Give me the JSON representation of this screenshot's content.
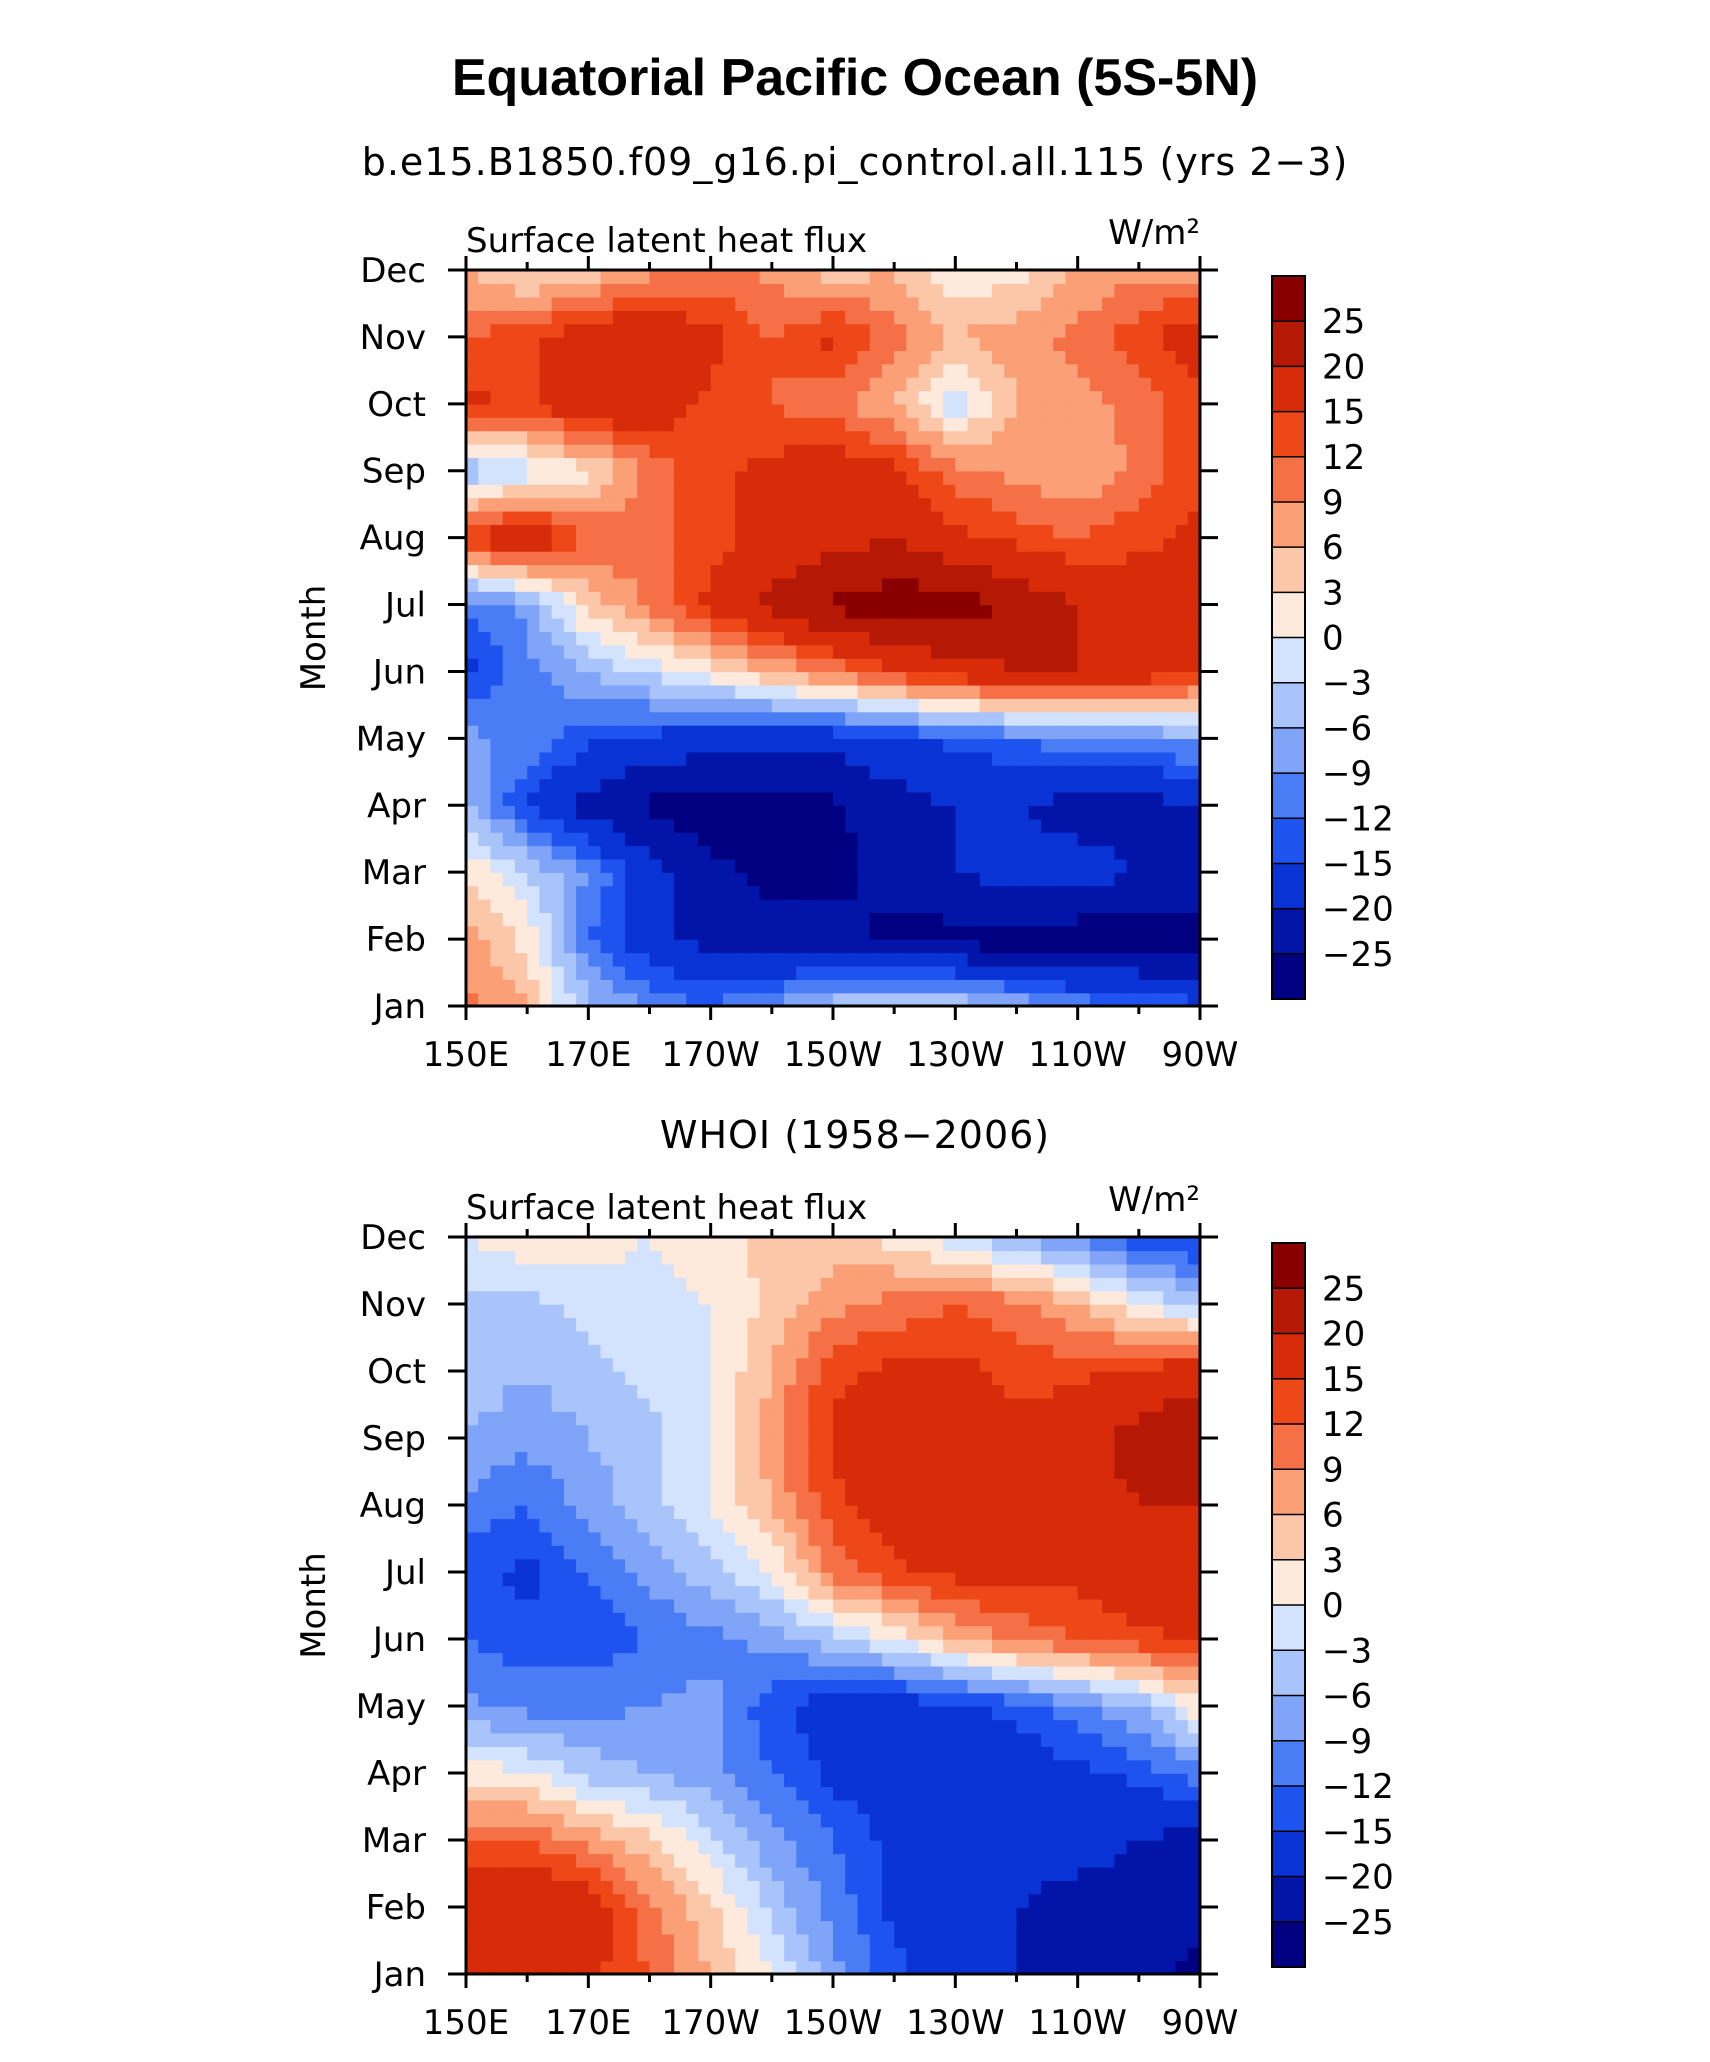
{
  "title": "Equatorial Pacific Ocean (5S-5N)",
  "colors": {
    "palette": [
      "#000080",
      "#0314a8",
      "#0a33d6",
      "#1f53f0",
      "#4a7cf5",
      "#7fa4f8",
      "#a9c3fb",
      "#d3e3fe",
      "#fdeadc",
      "#fcc6a8",
      "#fb9f76",
      "#f57046",
      "#ee4718",
      "#d72b0a",
      "#b51805",
      "#8a0000"
    ]
  },
  "chart_data": [
    {
      "type": "heatmap",
      "subtitle": "b.e15.B1850.f09_g16.pi_control.all.115 (yrs 2−3)",
      "variable_label": "Surface latent heat flux",
      "units_label": "W/m²",
      "ylabel": "Month",
      "x_ticks": [
        "150E",
        "170E",
        "170W",
        "150W",
        "130W",
        "110W",
        "90W"
      ],
      "y_ticks": [
        "Jan",
        "Feb",
        "Mar",
        "Apr",
        "May",
        "Jun",
        "Jul",
        "Aug",
        "Sep",
        "Oct",
        "Nov",
        "Dec"
      ],
      "xlim": [
        150,
        270
      ],
      "colorbar_levels": [
        "25",
        "20",
        "15",
        "12",
        "9",
        "6",
        "3",
        "0",
        "−3",
        "−6",
        "−9",
        "−12",
        "−15",
        "−20",
        "−25"
      ],
      "x_lon": [
        150,
        160,
        170,
        180,
        190,
        200,
        210,
        220,
        230,
        240,
        250,
        260,
        270
      ],
      "values": [
        [
          10,
          6,
          -5,
          -9,
          -12,
          -8,
          -4,
          -2,
          -3,
          -6,
          -10,
          -12,
          -14
        ],
        [
          8,
          2,
          -12,
          -18,
          -22,
          -24,
          -24,
          -26,
          -27,
          -28,
          -28,
          -28,
          -28
        ],
        [
          3,
          -3,
          -9,
          -18,
          -24,
          -26,
          -26,
          -24,
          -20,
          -18,
          -18,
          -20,
          -22
        ],
        [
          -6,
          -15,
          -22,
          -26,
          -28,
          -28,
          -26,
          -22,
          -20,
          -20,
          -22,
          -22,
          -20
        ],
        [
          -8,
          -10,
          -14,
          -16,
          -18,
          -18,
          -18,
          -16,
          -14,
          -12,
          -10,
          -9,
          -8
        ],
        [
          -16,
          -10,
          -6,
          -2,
          2,
          6,
          10,
          14,
          18,
          20,
          20,
          18,
          16
        ],
        [
          -12,
          -8,
          4,
          10,
          16,
          22,
          26,
          28,
          28,
          24,
          20,
          18,
          16
        ],
        [
          16,
          20,
          12,
          10,
          14,
          16,
          18,
          20,
          16,
          14,
          12,
          14,
          16
        ],
        [
          -6,
          -2,
          2,
          10,
          14,
          16,
          18,
          16,
          10,
          8,
          6,
          10,
          14
        ],
        [
          16,
          14,
          20,
          18,
          14,
          12,
          10,
          6,
          -2,
          6,
          8,
          10,
          14
        ],
        [
          12,
          14,
          18,
          20,
          16,
          12,
          16,
          10,
          6,
          8,
          10,
          14,
          18
        ],
        [
          6,
          2,
          4,
          8,
          10,
          8,
          4,
          6,
          0,
          2,
          6,
          8,
          8
        ]
      ]
    },
    {
      "type": "heatmap",
      "subtitle": "WHOI (1958−2006)",
      "variable_label": "Surface latent heat flux",
      "units_label": "W/m²",
      "ylabel": "Month",
      "x_ticks": [
        "150E",
        "170E",
        "170W",
        "150W",
        "130W",
        "110W",
        "90W"
      ],
      "y_ticks": [
        "Jan",
        "Feb",
        "Mar",
        "Apr",
        "May",
        "Jun",
        "Jul",
        "Aug",
        "Sep",
        "Oct",
        "Nov",
        "Dec"
      ],
      "xlim": [
        150,
        270
      ],
      "colorbar_levels": [
        "25",
        "20",
        "15",
        "12",
        "9",
        "6",
        "3",
        "0",
        "−3",
        "−6",
        "−9",
        "−12",
        "−15",
        "−20",
        "−25"
      ],
      "x_lon": [
        150,
        160,
        170,
        180,
        190,
        200,
        210,
        220,
        230,
        240,
        250,
        260,
        270
      ],
      "values": [
        [
          16,
          18,
          16,
          12,
          6,
          0,
          -8,
          -14,
          -18,
          -20,
          -22,
          -24,
          -26
        ],
        [
          18,
          20,
          18,
          10,
          4,
          -4,
          -10,
          -16,
          -18,
          -20,
          -22,
          -22,
          -24
        ],
        [
          12,
          12,
          8,
          4,
          -2,
          -8,
          -12,
          -16,
          -18,
          -18,
          -18,
          -20,
          -22
        ],
        [
          2,
          0,
          -4,
          -6,
          -8,
          -12,
          -16,
          -18,
          -18,
          -18,
          -16,
          -14,
          -10
        ],
        [
          -8,
          -10,
          -10,
          -9,
          -8,
          -14,
          -18,
          -18,
          -16,
          -14,
          -10,
          -6,
          2
        ],
        [
          -12,
          -14,
          -14,
          -12,
          -10,
          -8,
          -4,
          0,
          6,
          10,
          12,
          14,
          16
        ],
        [
          -14,
          -16,
          -12,
          -8,
          -4,
          0,
          10,
          14,
          16,
          16,
          16,
          18,
          18
        ],
        [
          -10,
          -12,
          -8,
          -4,
          0,
          6,
          14,
          18,
          20,
          18,
          18,
          20,
          20
        ],
        [
          -6,
          -8,
          -6,
          -4,
          0,
          8,
          16,
          18,
          18,
          16,
          18,
          22,
          24
        ],
        [
          -4,
          -6,
          -4,
          -2,
          0,
          6,
          14,
          16,
          16,
          14,
          14,
          16,
          18
        ],
        [
          -4,
          -4,
          -2,
          -2,
          0,
          4,
          8,
          10,
          12,
          10,
          6,
          0,
          -4
        ],
        [
          0,
          2,
          2,
          0,
          2,
          4,
          4,
          2,
          -2,
          -6,
          -10,
          -14,
          -16
        ]
      ]
    }
  ]
}
